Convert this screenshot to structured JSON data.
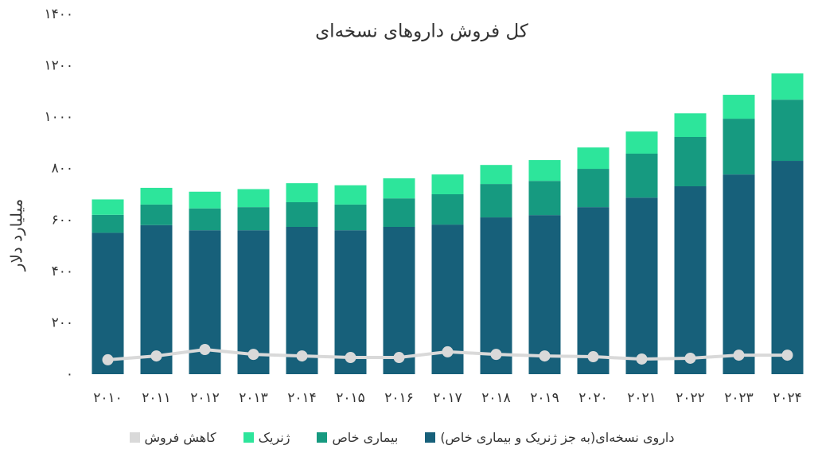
{
  "chart_data": {
    "type": "stacked_bar_line",
    "title": "کل فروش داروهای نسخه‌ای",
    "y_label": "میلیارد دلار",
    "categories": [
      "۲۰۱۰",
      "۲۰۱۱",
      "۲۰۱۲",
      "۲۰۱۳",
      "۲۰۱۴",
      "۲۰۱۵",
      "۲۰۱۶",
      "۲۰۱۷",
      "۲۰۱۸",
      "۲۰۱۹",
      "۲۰۲۰",
      "۲۰۲۱",
      "۲۰۲۲",
      "۲۰۲۳",
      "۲۰۲۴"
    ],
    "series": [
      {
        "name": "داروی نسخه‌ای(به جز ژنریک و بیماری خاص)",
        "color": "#17607a",
        "kind": "bar",
        "values": [
          550,
          580,
          560,
          560,
          573,
          560,
          573,
          582,
          610,
          619,
          650,
          687,
          731,
          777,
          830
        ]
      },
      {
        "name": "بیماری خاص",
        "color": "#169a80",
        "kind": "bar",
        "values": [
          70,
          80,
          85,
          90,
          96,
          100,
          111,
          118,
          130,
          133,
          149,
          171,
          192,
          217,
          238
        ]
      },
      {
        "name": "ژنریک",
        "color": "#2de59b",
        "kind": "bar",
        "values": [
          60,
          65,
          65,
          70,
          74,
          75,
          78,
          77,
          74,
          81,
          83,
          86,
          92,
          93,
          102
        ]
      },
      {
        "name": "کاهش فروش",
        "color": "#d9d9d9",
        "kind": "line",
        "values": [
          56,
          71,
          96,
          77,
          71,
          65,
          65,
          87,
          77,
          71,
          68,
          59,
          62,
          74,
          74
        ]
      }
    ],
    "ylim": [
      0,
      1400
    ],
    "yticks": [
      {
        "value": 0,
        "label": "۰"
      },
      {
        "value": 200,
        "label": "۲۰۰"
      },
      {
        "value": 400,
        "label": "۴۰۰"
      },
      {
        "value": 600,
        "label": "۶۰۰"
      },
      {
        "value": 800,
        "label": "۸۰۰"
      },
      {
        "value": 1000,
        "label": "۱۰۰۰"
      },
      {
        "value": 1200,
        "label": "۱۲۰۰"
      },
      {
        "value": 1400,
        "label": "۱۴۰۰"
      }
    ],
    "grid": false
  }
}
